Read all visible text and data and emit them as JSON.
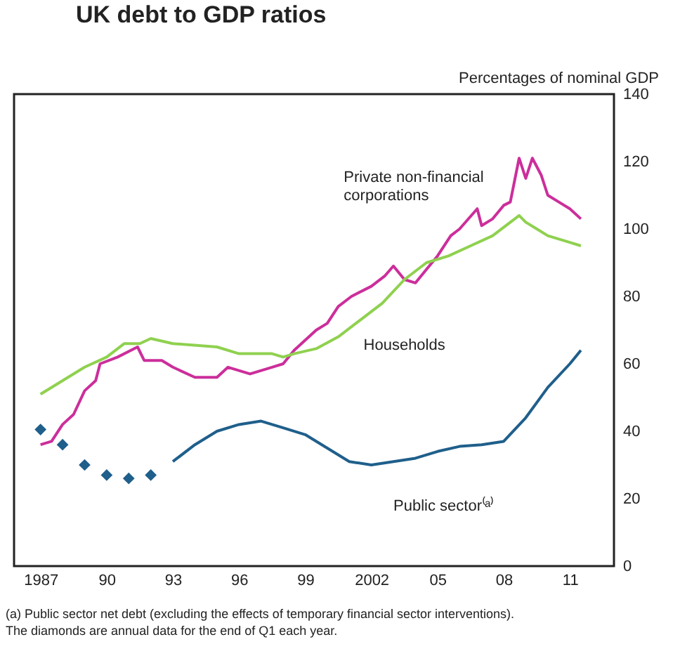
{
  "chart_data": {
    "type": "line",
    "title": "UK debt to GDP ratios",
    "ylabel": "Percentages of nominal GDP",
    "xlim": [
      1985.8,
      2013.0
    ],
    "xticks": [
      1987,
      {
        "value": 1990,
        "label": "90"
      },
      {
        "value": 1993,
        "label": "93"
      },
      {
        "value": 1996,
        "label": "96"
      },
      {
        "value": 1999,
        "label": "99"
      },
      2002,
      {
        "value": 2005,
        "label": "05"
      },
      {
        "value": 2008,
        "label": "08"
      },
      {
        "value": 2011,
        "label": "11"
      }
    ],
    "ylim": [
      0,
      140
    ],
    "yticks": [
      0,
      20,
      40,
      60,
      80,
      100,
      120,
      140
    ],
    "grid": false,
    "line_style": "solid",
    "series": [
      {
        "name": "Private non-financial corporations",
        "color": "#cc2e9b",
        "x": [
          1987,
          1987.5,
          1988,
          1988.5,
          1989,
          1989.5,
          1989.7,
          1990.5,
          1991.4,
          1991.7,
          1992.5,
          1993,
          1994,
          1995,
          1995.5,
          1996.5,
          1997.5,
          1998,
          1998.5,
          1999.5,
          2000,
          2000.5,
          2001.1,
          2002,
          2002.6,
          2003,
          2003.5,
          2004,
          2004.5,
          2005,
          2005.6,
          2006,
          2006.8,
          2007,
          2007.5,
          2008,
          2008.3,
          2008.7,
          2009,
          2009.3,
          2009.7,
          2010,
          2010.5,
          2011,
          2011.5
        ],
        "values": [
          36,
          37,
          42,
          45,
          52,
          55,
          60,
          62,
          65,
          61,
          61,
          59,
          56,
          56,
          59,
          57,
          59,
          60,
          64,
          70,
          72,
          77,
          80,
          83,
          86,
          89,
          85,
          84,
          88,
          92,
          98,
          100,
          106,
          101,
          103,
          107,
          108,
          121,
          115,
          121,
          116,
          110,
          108,
          106,
          103
        ]
      },
      {
        "name": "Households",
        "color": "#8fd14f",
        "x": [
          1987,
          1988,
          1989,
          1990,
          1990.8,
          1991.5,
          1992,
          1993,
          1995,
          1996,
          1997.5,
          1998,
          1998.5,
          1999.5,
          2000.5,
          2001.5,
          2002.5,
          2003.5,
          2004.5,
          2005.5,
          2006.5,
          2007.5,
          2008.7,
          2009,
          2010,
          2011,
          2011.5
        ],
        "values": [
          51,
          55,
          59,
          62,
          66,
          66,
          67.5,
          66,
          65,
          63,
          63,
          62,
          63,
          64.5,
          68,
          73,
          78,
          85,
          90,
          92,
          95,
          98,
          104,
          102,
          98,
          96,
          95
        ]
      },
      {
        "name": "Public sector⁽ᵃ⁾",
        "color": "#1f5f8b",
        "x": [
          1993,
          1994,
          1995,
          1996,
          1997,
          1998,
          1999,
          2000,
          2001,
          2002,
          2003,
          2004,
          2005,
          2006,
          2007,
          2008,
          2009,
          2010,
          2011,
          2011.5
        ],
        "values": [
          31,
          36,
          40,
          42,
          43,
          41,
          39,
          35,
          31,
          30,
          31,
          32,
          34,
          35.5,
          36,
          37,
          44,
          53,
          60,
          64
        ]
      },
      {
        "type": "scatter",
        "marker": "diamond",
        "color": "#1f5f8b",
        "x": [
          1987,
          1988,
          1989,
          1990,
          1991,
          1992
        ],
        "values": [
          40.5,
          36,
          30,
          27,
          26,
          27
        ]
      }
    ],
    "annotations": [
      "(a) Public sector net debt (excluding the effects of temporary financial sector interventions).",
      "The diamonds are annual data for the end of Q1 each year."
    ]
  }
}
